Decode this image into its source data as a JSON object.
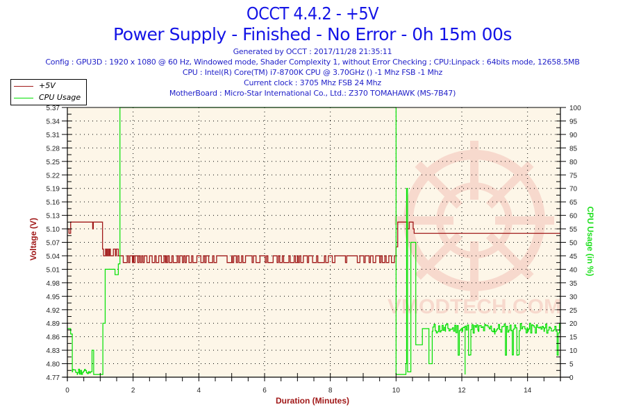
{
  "header": {
    "title": "OCCT 4.4.2 - +5V",
    "subtitle": "Power Supply - Finished - No Error - 0h 15m 00s",
    "info_lines": [
      "Generated by OCCT : 2017/11/28 21:35:11",
      "Config : GPU3D : 1920 x 1080 @ 60 Hz, Windowed mode, Shader Complexity 1, without Error Checking ; CPU:Linpack : 64bits mode, 12658.5MB",
      "CPU : Intel(R) Core(TM) i7-8700K CPU @ 3.70GHz () -1 Mhz FSB -1 Mhz",
      "Current clock : 3705 Mhz FSB 24 Mhz",
      "MotherBoard : Micro-Star International Co., Ltd.: Z370 TOMAHAWK (MS-7B47)"
    ]
  },
  "legend": {
    "items": [
      {
        "label": "+5V",
        "color": "#a01818"
      },
      {
        "label": "CPU Usage",
        "color": "#00e000"
      }
    ]
  },
  "axes": {
    "x_title": "Duration (Minutes)",
    "y_left_title": "Voltage (V)",
    "y_right_title": "CPU Usage (in %)"
  },
  "watermark": "VMODTECH.COM",
  "colors": {
    "plot_bg": "#fdf6e8",
    "voltage": "#a01818",
    "cpu": "#00e000",
    "title": "#1414e6",
    "axis_title_left": "#a01818",
    "axis_title_right": "#20e020"
  },
  "chart_data": {
    "type": "line",
    "title": "OCCT 4.4.2 - +5V",
    "subtitle": "Power Supply - Finished - No Error - 0h 15m 00s",
    "xlabel": "Duration (Minutes)",
    "ylabel": "Voltage (V)",
    "ylabel_right": "CPU Usage (in %)",
    "xlim": [
      0,
      15
    ],
    "ylim": [
      4.77,
      5.37
    ],
    "ylim_right": [
      0,
      100
    ],
    "x_ticks": [
      0,
      2,
      4,
      6,
      8,
      10,
      12,
      14
    ],
    "y_ticks": [
      4.77,
      4.8,
      4.83,
      4.86,
      4.89,
      4.92,
      4.95,
      4.98,
      5.01,
      5.04,
      5.07,
      5.1,
      5.13,
      5.16,
      5.19,
      5.22,
      5.25,
      5.28,
      5.31,
      5.34,
      5.37
    ],
    "y_right_ticks": [
      0,
      5,
      10,
      15,
      20,
      25,
      30,
      35,
      40,
      45,
      50,
      55,
      60,
      65,
      70,
      75,
      80,
      85,
      90,
      95,
      100
    ],
    "grid": true,
    "legend_position": "top-left",
    "series": [
      {
        "name": "+5V",
        "axis": "left",
        "x": [
          0,
          0.05,
          0.1,
          0.12,
          0.15,
          0.75,
          0.77,
          0.79,
          1.05,
          1.07,
          1.5,
          1.55,
          1.6,
          2.0,
          3.0,
          4.0,
          5.0,
          6.0,
          7.0,
          8.0,
          9.0,
          9.95,
          10.0,
          10.05,
          10.3,
          10.35,
          10.4,
          10.45,
          10.52,
          10.55,
          15
        ],
        "values": [
          5.1,
          5.09,
          5.115,
          5.115,
          5.115,
          5.115,
          5.1,
          5.115,
          5.115,
          5.055,
          5.055,
          5.04,
          5.04,
          5.04,
          5.04,
          5.04,
          5.04,
          5.04,
          5.04,
          5.04,
          5.04,
          5.04,
          5.06,
          5.115,
          5.115,
          5.1,
          5.115,
          5.115,
          5.1,
          5.09,
          5.09
        ]
      },
      {
        "name": "CPU Usage",
        "axis": "right",
        "x": [
          0,
          0.1,
          0.15,
          0.3,
          0.7,
          0.75,
          0.8,
          1.0,
          1.08,
          1.15,
          1.3,
          1.45,
          1.55,
          1.6,
          9.95,
          10.0,
          10.3,
          10.32,
          10.35,
          10.45,
          10.6,
          10.8,
          11.0,
          11.1,
          11.5,
          12.0,
          12.1,
          12.5,
          13.0,
          13.5,
          14.0,
          14.5,
          15
        ],
        "values": [
          18,
          16,
          2,
          1,
          2,
          10,
          1,
          1,
          20,
          40,
          40,
          38,
          42,
          100,
          100,
          1,
          5,
          70,
          2,
          50,
          12,
          18,
          5,
          17,
          17,
          17,
          1,
          17,
          16,
          17,
          17,
          17,
          18
        ]
      }
    ]
  }
}
